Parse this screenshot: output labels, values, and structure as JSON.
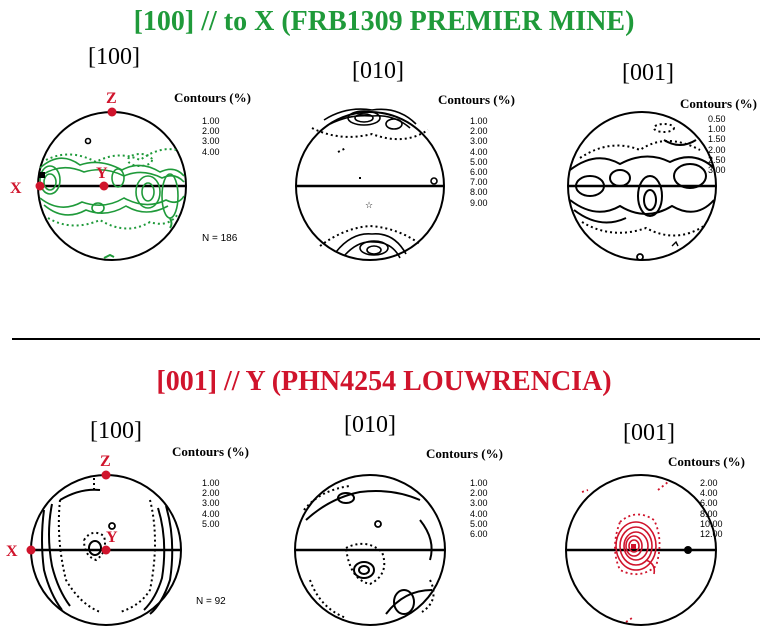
{
  "sections": [
    {
      "title": "[100] // to X  (FRB1309 PREMIER MINE)",
      "color": "#1f9a3a",
      "panels": [
        {
          "label": "[100]",
          "contours_title": "Contours (%)",
          "levels": [
            "1.00",
            "2.00",
            "3.00",
            "4.00"
          ],
          "n": "N =  186",
          "axis_labels": {
            "x": "X",
            "y": "Y",
            "z": "Z"
          }
        },
        {
          "label": "[010]",
          "contours_title": "Contours (%)",
          "levels": [
            "1.00",
            "2.00",
            "3.00",
            "4.00",
            "5.00",
            "6.00",
            "7.00",
            "8.00",
            "9.00"
          ]
        },
        {
          "label": "[001]",
          "contours_title": "Contours (%)",
          "levels": [
            "0.50",
            "1.00",
            "1.50",
            "2.00",
            "2.50",
            "3.00"
          ]
        }
      ]
    },
    {
      "title": "[001] // Y (PHN4254 LOUWRENCIA)",
      "color": "#d0142c",
      "panels": [
        {
          "label": "[100]",
          "contours_title": "Contours (%)",
          "levels": [
            "1.00",
            "2.00",
            "3.00",
            "4.00",
            "5.00"
          ],
          "n": "N =  92",
          "axis_labels": {
            "x": "X",
            "y": "Y",
            "z": "Z"
          }
        },
        {
          "label": "[010]",
          "contours_title": "Contours (%)",
          "levels": [
            "1.00",
            "2.00",
            "3.00",
            "4.00",
            "5.00",
            "6.00"
          ]
        },
        {
          "label": "[001]",
          "contours_title": "Contours (%)",
          "levels": [
            "2.00",
            "4.00",
            "6.00",
            "8.00",
            "10.00",
            "12.00"
          ]
        }
      ]
    }
  ]
}
